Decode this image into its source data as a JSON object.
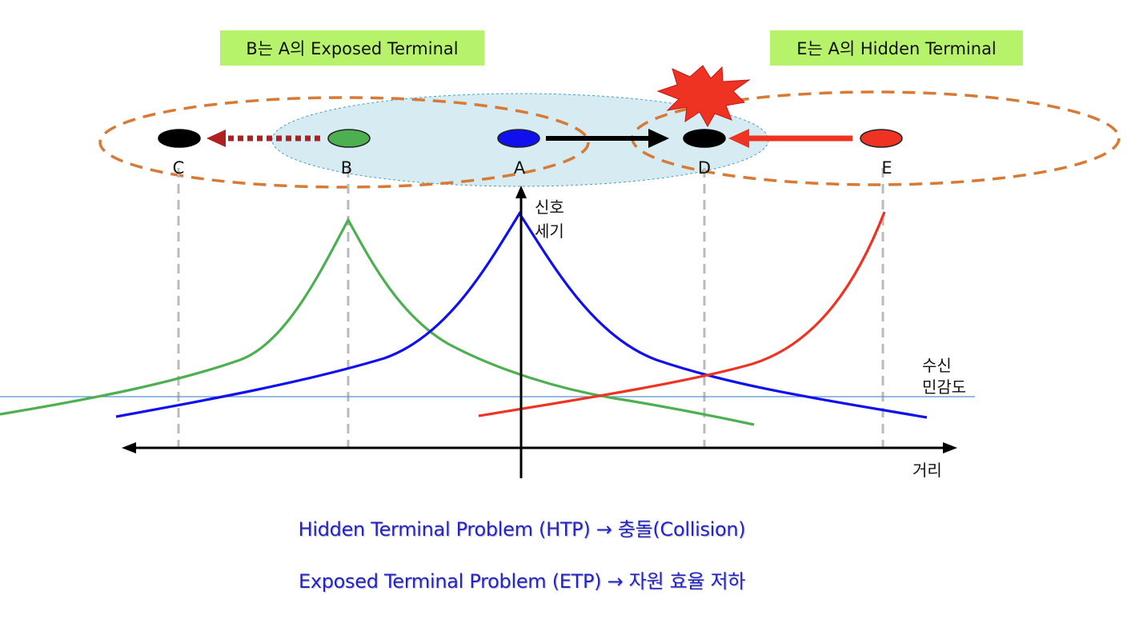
{
  "boxes": {
    "exposed": "B는 A의 Exposed Terminal",
    "hidden": "E는 A의 Hidden Terminal"
  },
  "nodes": [
    {
      "id": "C",
      "label": "C",
      "color": "#000000"
    },
    {
      "id": "B",
      "label": "B",
      "color": "#4caf50"
    },
    {
      "id": "A",
      "label": "A",
      "color": "#1010ee"
    },
    {
      "id": "D",
      "label": "D",
      "color": "#000000"
    },
    {
      "id": "E",
      "label": "E",
      "color": "#ee3322"
    }
  ],
  "axes": {
    "y_label_line1": "신호",
    "y_label_line2": "세기",
    "x_label": "거리",
    "threshold_line1": "수신",
    "threshold_line2": "민감도"
  },
  "captions": {
    "htp": "Hidden Terminal Problem (HTP) → 충돌(Collision)",
    "etp": "Exposed Terminal Problem (ETP) → 자원 효율 저하"
  },
  "colors": {
    "box_bg": "#b7f36a",
    "range_ellipse": "#d77a35",
    "a_range_fill": "#d6ebf2",
    "green_curve": "#4caf50",
    "blue_curve": "#1010ee",
    "red_curve": "#ee3322",
    "threshold": "#5b8fd0",
    "caption_text": "#2323c8",
    "collision": "#ee3322"
  }
}
